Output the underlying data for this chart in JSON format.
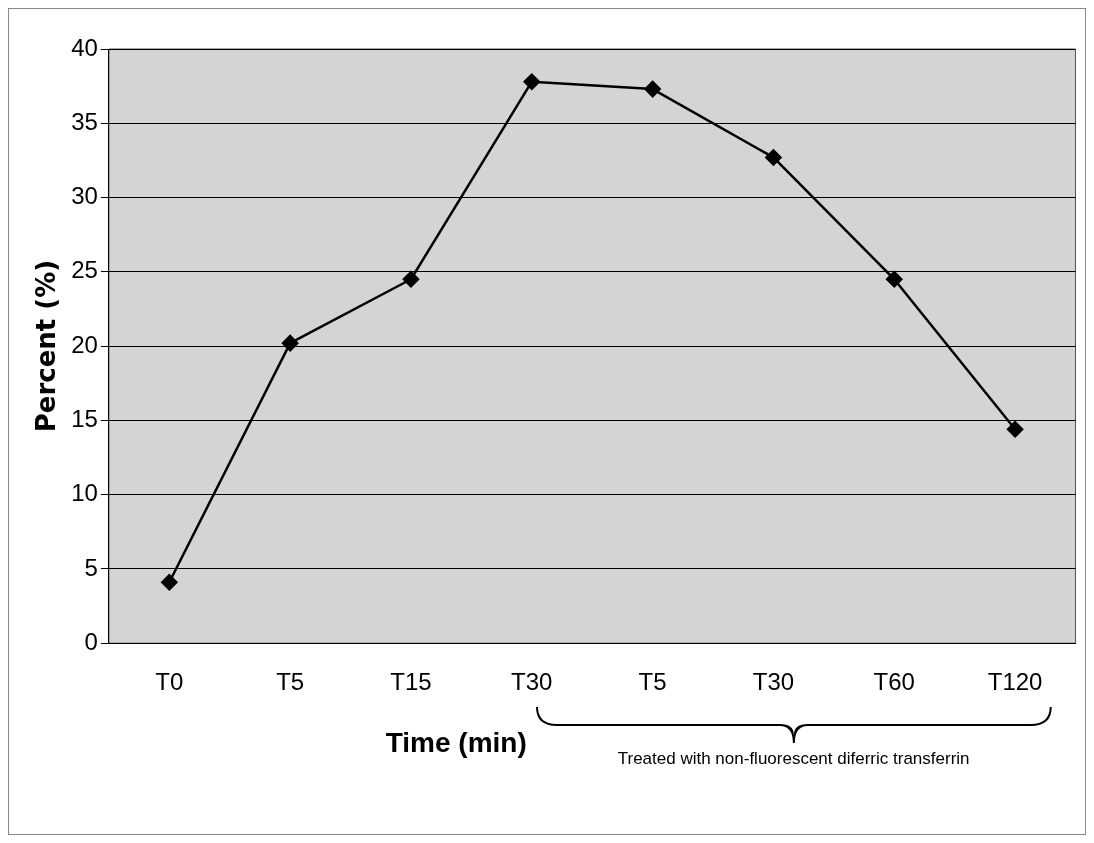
{
  "chart_data": {
    "type": "line",
    "xlabel": "Time (min)",
    "ylabel": "Percent (%)",
    "categories": [
      "T0",
      "T5",
      "T15",
      "T30",
      "T5",
      "T30",
      "T60",
      "T120"
    ],
    "series": [
      {
        "color": "#000000",
        "values": [
          4.1,
          20.2,
          24.5,
          37.8,
          37.3,
          32.7,
          24.5,
          14.4
        ]
      }
    ],
    "ylim": [
      0,
      40
    ],
    "yticks": [
      0,
      5,
      10,
      15,
      20,
      25,
      30,
      35,
      40
    ],
    "grid": "y",
    "legend": false,
    "marker": "diamond",
    "line_style": "solid",
    "annotations": [
      "Treated with non-fluorescent diferric transferrin"
    ]
  }
}
